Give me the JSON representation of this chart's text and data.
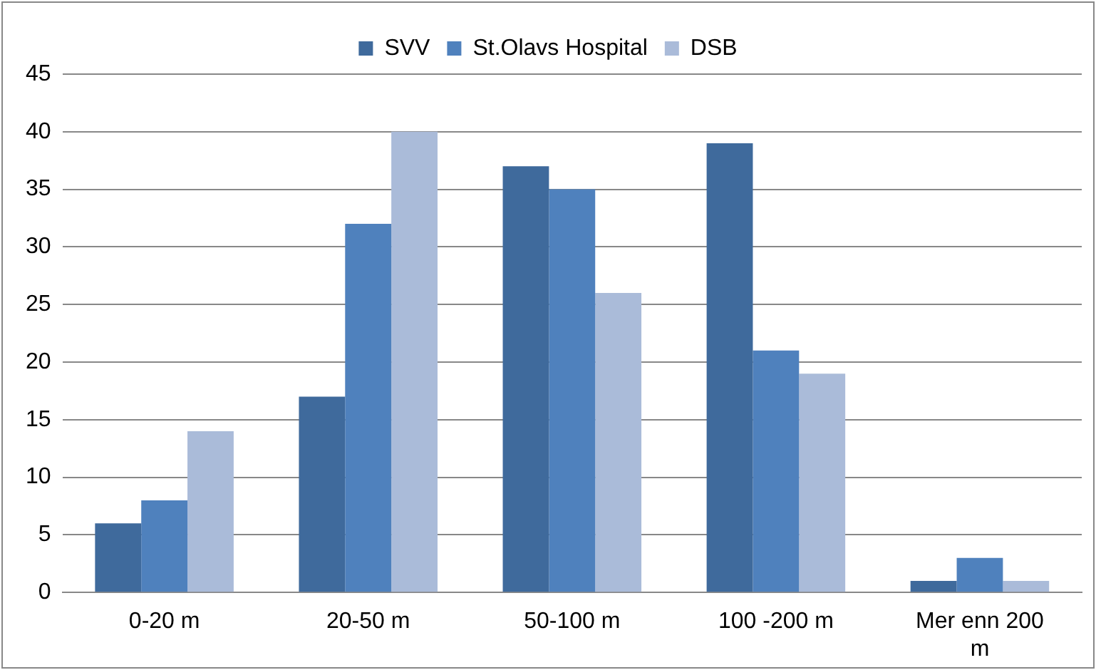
{
  "chart_data": {
    "type": "bar",
    "categories": [
      "0-20 m",
      "20-50 m",
      "50-100 m",
      "100 -200 m",
      "Mer enn 200 m"
    ],
    "series": [
      {
        "name": "SVV",
        "color": "#3f6a9c",
        "values": [
          6,
          17,
          37,
          39,
          1
        ]
      },
      {
        "name": "St.Olavs Hospital",
        "color": "#4f81bd",
        "values": [
          8,
          32,
          35,
          21,
          3
        ]
      },
      {
        "name": "DSB",
        "color": "#aabbd9",
        "values": [
          14,
          40,
          26,
          19,
          1
        ]
      }
    ],
    "ylim": [
      0,
      45
    ],
    "yticks": [
      0,
      5,
      10,
      15,
      20,
      25,
      30,
      35,
      40,
      45
    ],
    "grid": "y",
    "legend": "top"
  }
}
